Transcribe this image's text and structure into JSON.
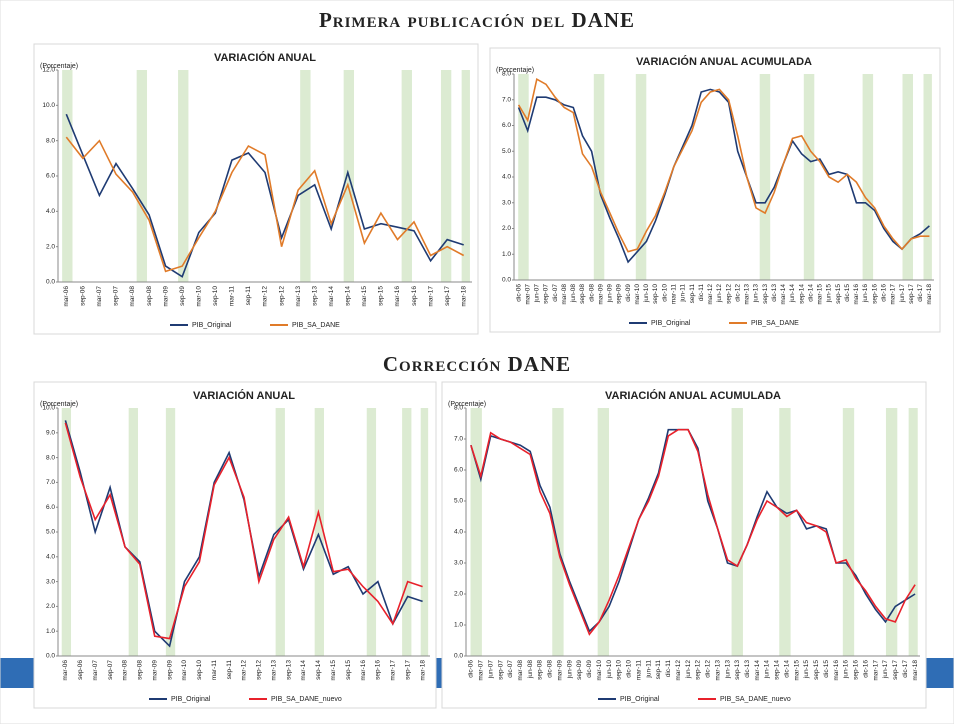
{
  "heading_top": "Primera publicación del DANE",
  "heading_bottom": "Corrección DANE",
  "chart_data": [
    {
      "type": "line",
      "title": "VARIACIÓN ANUAL",
      "y_label": "(Porcentaje)",
      "categories": [
        "mar-06",
        "sep-06",
        "mar-07",
        "sep-07",
        "mar-08",
        "sep-08",
        "mar-09",
        "sep-09",
        "mar-10",
        "sep-10",
        "mar-11",
        "sep-11",
        "mar-12",
        "sep-12",
        "mar-13",
        "sep-13",
        "mar-14",
        "sep-14",
        "mar-15",
        "sep-15",
        "mar-16",
        "sep-16",
        "mar-17",
        "sep-17",
        "mar-18"
      ],
      "series": [
        {
          "name": "PIB_Original",
          "color": "#1f3b73",
          "values": [
            9.5,
            7.2,
            4.9,
            6.7,
            5.3,
            3.8,
            0.9,
            0.3,
            2.8,
            3.9,
            6.9,
            7.3,
            6.2,
            2.5,
            4.9,
            5.5,
            3.0,
            6.2,
            3.0,
            3.3,
            3.1,
            2.9,
            1.2,
            2.4,
            2.1
          ]
        },
        {
          "name": "PIB_SA_DANE",
          "color": "#e07b29",
          "values": [
            8.2,
            7.0,
            8.0,
            6.1,
            5.1,
            3.5,
            0.6,
            0.9,
            2.5,
            4.0,
            6.2,
            7.7,
            7.2,
            2.0,
            5.2,
            6.3,
            3.3,
            5.5,
            2.2,
            3.9,
            2.4,
            3.4,
            1.5,
            2.0,
            1.5
          ]
        }
      ],
      "ylim": [
        0,
        12
      ],
      "yticks": [
        {
          "value": 0,
          "label": "0.0"
        },
        {
          "value": 2,
          "label": "2.0"
        },
        {
          "value": 4,
          "label": "4.0"
        },
        {
          "value": 6,
          "label": "6.0"
        },
        {
          "value": 8,
          "label": "8.0"
        },
        {
          "value": 10,
          "label": "10.0"
        },
        {
          "value": 12,
          "label": "12.0"
        }
      ]
    },
    {
      "type": "line",
      "title": "VARIACIÓN ANUAL ACUMULADA",
      "y_label": "(Porcentaje)",
      "categories": [
        "dic-06",
        "mar-07",
        "jun-07",
        "sep-07",
        "dic-07",
        "mar-08",
        "jun-08",
        "sep-08",
        "dic-08",
        "mar-09",
        "jun-09",
        "sep-09",
        "dic-09",
        "mar-10",
        "jun-10",
        "sep-10",
        "dic-10",
        "mar-11",
        "jun-11",
        "sep-11",
        "dic-11",
        "mar-12",
        "jun-12",
        "sep-12",
        "dic-12",
        "mar-13",
        "jun-13",
        "sep-13",
        "dic-13",
        "mar-14",
        "jun-14",
        "sep-14",
        "dic-14",
        "mar-15",
        "jun-15",
        "sep-15",
        "dic-15",
        "mar-16",
        "jun-16",
        "sep-16",
        "dic-16",
        "mar-17",
        "jun-17",
        "sep-17",
        "dic-17",
        "mar-18"
      ],
      "series": [
        {
          "name": "PIB_Original",
          "color": "#1f3b73",
          "values": [
            6.7,
            5.8,
            7.1,
            7.1,
            7.0,
            6.8,
            6.7,
            5.6,
            5.0,
            3.3,
            2.4,
            1.6,
            0.7,
            1.1,
            1.5,
            2.3,
            3.3,
            4.4,
            5.2,
            6.0,
            7.3,
            7.4,
            7.3,
            6.9,
            5.0,
            4.0,
            3.0,
            3.0,
            3.6,
            4.5,
            5.4,
            4.9,
            4.6,
            4.7,
            4.1,
            4.2,
            4.1,
            3.0,
            3.0,
            2.7,
            2.0,
            1.5,
            1.2,
            1.6,
            1.8,
            2.1
          ]
        },
        {
          "name": "PIB_SA_DANE",
          "color": "#e07b29",
          "values": [
            6.8,
            6.2,
            7.8,
            7.6,
            7.1,
            6.7,
            6.5,
            4.9,
            4.4,
            3.4,
            2.6,
            1.8,
            1.1,
            1.2,
            1.9,
            2.5,
            3.4,
            4.4,
            5.1,
            5.8,
            6.9,
            7.3,
            7.4,
            7.0,
            5.6,
            4.0,
            2.8,
            2.6,
            3.4,
            4.5,
            5.5,
            5.6,
            5.0,
            4.6,
            4.0,
            3.8,
            4.1,
            3.8,
            3.2,
            2.8,
            2.1,
            1.6,
            1.2,
            1.6,
            1.7,
            1.7
          ]
        }
      ],
      "ylim": [
        0,
        8
      ],
      "yticks": [
        {
          "value": 0,
          "label": "0.0"
        },
        {
          "value": 1,
          "label": "1.0"
        },
        {
          "value": 2,
          "label": "2.0"
        },
        {
          "value": 3,
          "label": "3.0"
        },
        {
          "value": 4,
          "label": "4.0"
        },
        {
          "value": 5,
          "label": "5.0"
        },
        {
          "value": 6,
          "label": "6.0"
        },
        {
          "value": 7,
          "label": "7.0"
        },
        {
          "value": 8,
          "label": "8.0"
        }
      ]
    },
    {
      "type": "line",
      "title": "VARIACIÓN ANUAL",
      "y_label": "(Porcentaje)",
      "categories": [
        "mar-06",
        "sep-06",
        "mar-07",
        "sep-07",
        "mar-08",
        "sep-08",
        "mar-09",
        "sep-09",
        "mar-10",
        "sep-10",
        "mar-11",
        "sep-11",
        "mar-12",
        "sep-12",
        "mar-13",
        "sep-13",
        "mar-14",
        "sep-14",
        "mar-15",
        "sep-15",
        "mar-16",
        "sep-16",
        "mar-17",
        "sep-17",
        "mar-18"
      ],
      "series": [
        {
          "name": "PIB_Original",
          "color": "#1f3b73",
          "values": [
            9.5,
            7.4,
            5.0,
            6.8,
            4.4,
            3.8,
            1.0,
            0.4,
            3.0,
            4.0,
            7.0,
            8.2,
            6.3,
            3.2,
            4.9,
            5.5,
            3.5,
            4.9,
            3.3,
            3.6,
            2.5,
            3.0,
            1.3,
            2.4,
            2.2
          ]
        },
        {
          "name": "PIB_SA_DANE_nuevo",
          "color": "#e8212b",
          "values": [
            9.4,
            7.2,
            5.5,
            6.5,
            4.4,
            3.7,
            0.8,
            0.7,
            2.8,
            3.8,
            6.9,
            8.0,
            6.4,
            3.0,
            4.7,
            5.6,
            3.6,
            5.8,
            3.4,
            3.5,
            2.8,
            2.2,
            1.3,
            3.0,
            2.8
          ]
        }
      ],
      "ylim": [
        0,
        10
      ],
      "yticks": [
        {
          "value": 0,
          "label": "0.0"
        },
        {
          "value": 1,
          "label": "1.0"
        },
        {
          "value": 2,
          "label": "2.0"
        },
        {
          "value": 3,
          "label": "3.0"
        },
        {
          "value": 4,
          "label": "4.0"
        },
        {
          "value": 5,
          "label": "5.0"
        },
        {
          "value": 6,
          "label": "6.0"
        },
        {
          "value": 7,
          "label": "7.0"
        },
        {
          "value": 8,
          "label": "8.0"
        },
        {
          "value": 9,
          "label": "9.0"
        },
        {
          "value": 10,
          "label": "10.0"
        }
      ]
    },
    {
      "type": "line",
      "title": "VARIACIÓN ANUAL ACUMULADA",
      "y_label": "(Porcentaje)",
      "categories": [
        "dic-06",
        "mar-07",
        "jun-07",
        "sep-07",
        "dic-07",
        "mar-08",
        "jun-08",
        "sep-08",
        "dic-08",
        "mar-09",
        "jun-09",
        "sep-09",
        "dic-09",
        "mar-10",
        "jun-10",
        "sep-10",
        "dic-10",
        "mar-11",
        "jun-11",
        "sep-11",
        "dic-11",
        "mar-12",
        "jun-12",
        "sep-12",
        "dic-12",
        "mar-13",
        "jun-13",
        "sep-13",
        "dic-13",
        "mar-14",
        "jun-14",
        "sep-14",
        "dic-14",
        "mar-15",
        "jun-15",
        "sep-15",
        "dic-15",
        "mar-16",
        "jun-16",
        "sep-16",
        "dic-16",
        "mar-17",
        "jun-17",
        "sep-17",
        "dic-17",
        "mar-18"
      ],
      "series": [
        {
          "name": "PIB_Original",
          "color": "#1f3b73",
          "values": [
            6.8,
            5.7,
            7.1,
            7.0,
            6.9,
            6.8,
            6.6,
            5.5,
            4.8,
            3.3,
            2.4,
            1.6,
            0.8,
            1.1,
            1.6,
            2.4,
            3.4,
            4.4,
            5.1,
            5.9,
            7.3,
            7.3,
            7.3,
            6.7,
            5.0,
            4.1,
            3.0,
            2.9,
            3.6,
            4.5,
            5.3,
            4.8,
            4.6,
            4.7,
            4.1,
            4.2,
            4.1,
            3.0,
            3.0,
            2.6,
            2.0,
            1.5,
            1.1,
            1.6,
            1.8,
            2.0
          ]
        },
        {
          "name": "PIB_SA_DANE_nuevo",
          "color": "#e8212b",
          "values": [
            6.8,
            5.8,
            7.2,
            7.0,
            6.9,
            6.7,
            6.5,
            5.3,
            4.6,
            3.2,
            2.3,
            1.5,
            0.7,
            1.1,
            1.8,
            2.6,
            3.5,
            4.4,
            5.0,
            5.8,
            7.1,
            7.3,
            7.3,
            6.6,
            5.2,
            4.1,
            3.1,
            2.9,
            3.6,
            4.4,
            5.0,
            4.8,
            4.5,
            4.7,
            4.3,
            4.2,
            4.0,
            3.0,
            3.1,
            2.5,
            2.1,
            1.6,
            1.2,
            1.1,
            1.8,
            2.3
          ]
        }
      ],
      "ylim": [
        0,
        8
      ],
      "yticks": [
        {
          "value": 0,
          "label": "0.0"
        },
        {
          "value": 1,
          "label": "1.0"
        },
        {
          "value": 2,
          "label": "2.0"
        },
        {
          "value": 3,
          "label": "3.0"
        },
        {
          "value": 4,
          "label": "4.0"
        },
        {
          "value": 5,
          "label": "5.0"
        },
        {
          "value": 6,
          "label": "6.0"
        },
        {
          "value": 7,
          "label": "7.0"
        },
        {
          "value": 8,
          "label": "8.0"
        }
      ]
    }
  ]
}
